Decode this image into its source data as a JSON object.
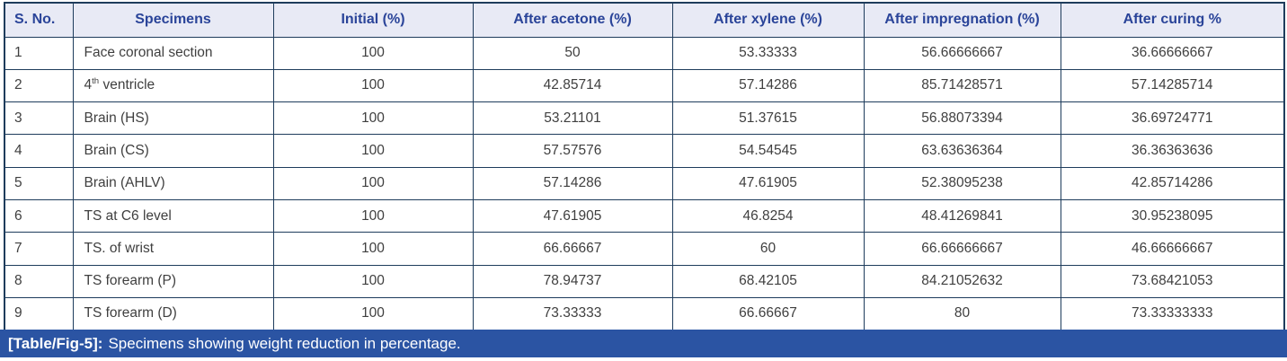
{
  "table": {
    "headers": [
      "S. No.",
      "Specimens",
      "Initial (%)",
      "After acetone (%)",
      "After xylene (%)",
      "After impregnation (%)",
      "After curing %"
    ],
    "column_keys": [
      "s-no",
      "specimen",
      "initial",
      "after-acetone",
      "after-xylene",
      "after-impregnation",
      "after-curing"
    ],
    "rows": [
      {
        "cells": [
          "1",
          "Face coronal section",
          "100",
          "50",
          "53.33333",
          "56.66666667",
          "36.66666667"
        ]
      },
      {
        "cells": [
          "2",
          {
            "text": "4",
            "sup": "th",
            "after": " ventricle"
          },
          "100",
          "42.85714",
          "57.14286",
          "85.71428571",
          "57.14285714"
        ]
      },
      {
        "cells": [
          "3",
          "Brain (HS)",
          "100",
          "53.21101",
          "51.37615",
          "56.88073394",
          "36.69724771"
        ]
      },
      {
        "cells": [
          "4",
          "Brain (CS)",
          "100",
          "57.57576",
          "54.54545",
          "63.63636364",
          "36.36363636"
        ]
      },
      {
        "cells": [
          "5",
          "Brain (AHLV)",
          "100",
          "57.14286",
          "47.61905",
          "52.38095238",
          "42.85714286"
        ]
      },
      {
        "cells": [
          "6",
          "TS at C6 level",
          "100",
          "47.61905",
          "46.8254",
          "48.41269841",
          "30.95238095"
        ]
      },
      {
        "cells": [
          "7",
          "TS. of wrist",
          "100",
          "66.66667",
          "60",
          "66.66666667",
          "46.66666667"
        ]
      },
      {
        "cells": [
          "8",
          "TS forearm (P)",
          "100",
          "78.94737",
          "68.42105",
          "84.21052632",
          "73.68421053"
        ]
      },
      {
        "cells": [
          "9",
          "TS forearm (D)",
          "100",
          "73.33333",
          "66.66667",
          "80",
          "73.33333333"
        ]
      }
    ]
  },
  "caption": {
    "label": "[Table/Fig-5]:",
    "text": "Specimens showing weight reduction in percentage."
  },
  "colors": {
    "header_bg": "#e8eaf5",
    "header_text": "#2a4499",
    "grid_border": "#1e3c5c",
    "body_text": "#3f3f3f",
    "caption_bg": "#2b54a3",
    "caption_text": "#ffffff"
  }
}
